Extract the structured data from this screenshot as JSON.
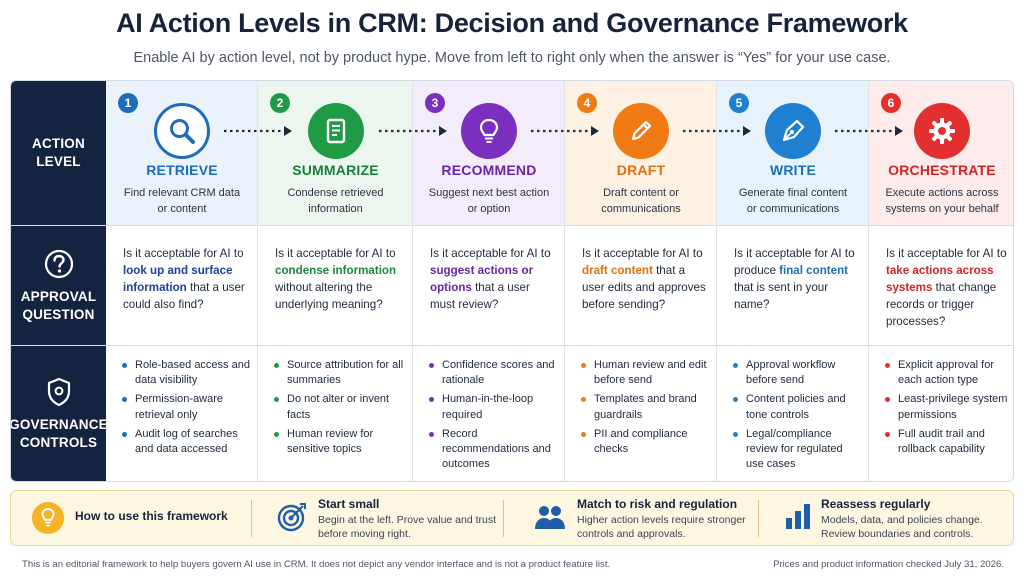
{
  "title": "AI Action Levels in CRM: Decision and Governance Framework",
  "subtitle": "Enable AI by action level, not by product hype. Move from left to right only when the answer is “Yes” for your use case.",
  "row_headers": {
    "action_level": "ACTION\nLEVEL",
    "approval_question": "APPROVAL\nQUESTION",
    "governance_controls": "GOVERNANCE\nCONTROLS"
  },
  "row_icons": {
    "approval_question": "question-circle-icon",
    "governance_controls": "shield-icon"
  },
  "colors": {
    "navy": "#14233f",
    "retrieve": "#1e6bbf",
    "summarize": "#1f9a45",
    "recommend": "#7b2fbf",
    "draft": "#f07a14",
    "write": "#1f7fd0",
    "orchestrate": "#e22f2f",
    "footer_bg": "#fdf6e1"
  },
  "levels": [
    {
      "num": "1",
      "name": "RETRIEVE",
      "icon": "magnifier-icon",
      "desc": "Find relevant CRM data\nor content",
      "q_pre": "Is it acceptable for AI to ",
      "q_hl": "look up and surface information",
      "q_post": " that a user could also find?",
      "controls": [
        "Role-based access and data visibility",
        "Permission-aware retrieval only",
        "Audit log of searches and data accessed"
      ]
    },
    {
      "num": "2",
      "name": "SUMMARIZE",
      "icon": "document-icon",
      "desc": "Condense retrieved\ninformation",
      "q_pre": "Is it acceptable for AI to ",
      "q_hl": "condense information",
      "q_post": " without altering the underlying meaning?",
      "controls": [
        "Source attribution for all summaries",
        "Do not alter or invent facts",
        "Human review for sensitive topics"
      ]
    },
    {
      "num": "3",
      "name": "RECOMMEND",
      "icon": "lightbulb-icon",
      "desc": "Suggest next best action\nor option",
      "q_pre": "Is it acceptable for AI to ",
      "q_hl": "suggest actions or options",
      "q_post": " that a user must review?",
      "controls": [
        "Confidence scores and rationale",
        "Human-in-the-loop required",
        "Record recommendations and outcomes"
      ]
    },
    {
      "num": "4",
      "name": "DRAFT",
      "icon": "pencil-icon",
      "desc": "Draft content or\ncommunications",
      "q_pre": "Is it acceptable for AI to ",
      "q_hl": "draft content",
      "q_post": " that a user edits and approves before sending?",
      "controls": [
        "Human review and edit before send",
        "Templates and brand guardrails",
        "PII and compliance checks"
      ]
    },
    {
      "num": "5",
      "name": "WRITE",
      "icon": "pen-nib-icon",
      "desc": "Generate final content\nor communications",
      "q_pre": "Is it acceptable for AI to produce ",
      "q_hl": "final content",
      "q_post": " that is sent in your name?",
      "controls": [
        "Approval workflow before send",
        "Content policies and tone controls",
        "Legal/compliance review for regulated use cases"
      ]
    },
    {
      "num": "6",
      "name": "ORCHESTRATE",
      "icon": "gear-icon",
      "desc": "Execute actions across\nsystems on your behalf",
      "q_pre": "Is it acceptable for AI to ",
      "q_hl": "take actions across systems",
      "q_post": " that change records or trigger processes?",
      "controls": [
        "Explicit approval for each action type",
        "Least-privilege system permissions",
        "Full audit trail and rollback capability"
      ]
    }
  ],
  "how_to": {
    "title": "How to use this framework",
    "icon": "lightbulb-icon",
    "items": [
      {
        "title": "Start small",
        "icon": "target-icon",
        "text": "Begin at the left. Prove value and trust\nbefore moving right."
      },
      {
        "title": "Match to risk and regulation",
        "icon": "people-icon",
        "text": "Higher action levels require stronger\ncontrols and approvals."
      },
      {
        "title": "Reassess regularly",
        "icon": "bar-chart-icon",
        "text": "Models, data, and policies change.\nReview boundaries and controls."
      }
    ]
  },
  "footnote_left": "This is an editorial framework to help buyers govern AI use in CRM. It does not depict any vendor interface and is not a product feature list.",
  "footnote_right": "Prices and product information checked July 31, 2026."
}
